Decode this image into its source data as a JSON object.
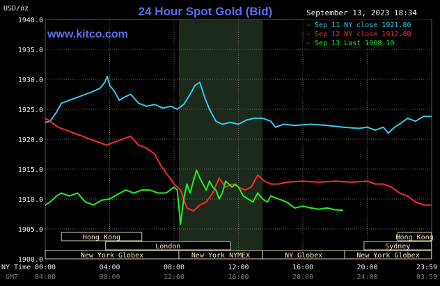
{
  "chart_data": {
    "type": "line",
    "title": "24 Hour Spot Gold (Bid)",
    "site": "www.kitco.com",
    "timestamp": "September 13, 2023 18:34",
    "ylabel": "USD/oz",
    "ylim": [
      1900,
      1940
    ],
    "yticks": [
      "1940.0",
      "1935.0",
      "1930.0",
      "1925.0",
      "1920.0",
      "1915.0",
      "1910.0",
      "1905.0",
      "1900.0"
    ],
    "ny_time_label": "NY Time",
    "gmt_label": "GMT",
    "xticks_ny": [
      "00:00",
      "04:00",
      "08:00",
      "12:00",
      "16:00",
      "20:00",
      "23:59"
    ],
    "xticks_gmt": [
      "04:00",
      "08:00",
      "12:00",
      "16:00",
      "20:00",
      "24:00",
      "03:59"
    ],
    "legend": [
      {
        "label": "Sep 11 NY close 1921.80",
        "color": "#33ccee"
      },
      {
        "label": "Sep 12 NY close 1912.80",
        "color": "#ff2a2a"
      },
      {
        "label": "Sep 13 Last 1908.10",
        "color": "#22ee22"
      }
    ],
    "sessions": [
      {
        "label": "Hong Kong",
        "row": 0,
        "start": 1.0,
        "end": 6.0
      },
      {
        "label": "Hong Kong",
        "row": 0,
        "start": 21.9,
        "end": 23.99
      },
      {
        "label": "London",
        "row": 1,
        "start": 3.75,
        "end": 11.5
      },
      {
        "label": "Sydney",
        "row": 1,
        "start": 19.8,
        "end": 23.99
      },
      {
        "label": "New York Globex",
        "row": 2,
        "start": 0.0,
        "end": 8.3
      },
      {
        "label": "New York NYMEX",
        "row": 2,
        "start": 8.3,
        "end": 13.5
      },
      {
        "label": "NY Globex",
        "row": 2,
        "start": 13.5,
        "end": 18.6
      },
      {
        "label": "New York Globex",
        "row": 2,
        "start": 18.6,
        "end": 23.99
      }
    ],
    "series": [
      {
        "name": "Sep 11",
        "color": "#33ccee",
        "x": [
          0,
          0.3,
          0.7,
          1.0,
          1.5,
          2.0,
          2.5,
          3.0,
          3.4,
          3.7,
          3.85,
          4.0,
          4.3,
          4.6,
          4.9,
          5.3,
          5.8,
          6.3,
          6.8,
          7.3,
          7.8,
          8.2,
          8.6,
          9.0,
          9.3,
          9.6,
          9.9,
          10.2,
          10.6,
          11.0,
          11.5,
          12.0,
          12.5,
          13.0,
          13.5,
          14.0,
          14.3,
          14.8,
          15.5,
          16.5,
          17.5,
          18.5,
          19.5,
          20.0,
          20.5,
          21.0,
          21.3,
          21.7,
          22.0,
          22.5,
          23.0,
          23.5,
          23.99
        ],
        "y": [
          1922.8,
          1923.0,
          1924.5,
          1926.0,
          1926.5,
          1927.0,
          1927.5,
          1928.0,
          1928.5,
          1929.5,
          1930.5,
          1929.0,
          1928.0,
          1926.5,
          1927.0,
          1927.5,
          1926.0,
          1925.5,
          1925.8,
          1925.2,
          1925.5,
          1925.0,
          1925.8,
          1927.5,
          1929.0,
          1929.5,
          1927.0,
          1925.0,
          1923.0,
          1922.5,
          1922.8,
          1922.5,
          1923.2,
          1923.5,
          1923.5,
          1923.0,
          1922.0,
          1922.5,
          1922.3,
          1922.5,
          1922.3,
          1922.0,
          1921.8,
          1922.0,
          1921.5,
          1922.0,
          1921.0,
          1922.0,
          1922.5,
          1923.5,
          1923.0,
          1923.8,
          1923.8
        ]
      },
      {
        "name": "Sep 12",
        "color": "#ff2a2a",
        "x": [
          0,
          0.3,
          0.8,
          1.3,
          1.8,
          2.3,
          2.8,
          3.3,
          3.8,
          4.3,
          4.8,
          5.3,
          5.8,
          6.3,
          6.8,
          7.2,
          7.6,
          8.0,
          8.4,
          8.8,
          9.2,
          9.6,
          10.0,
          10.4,
          10.8,
          11.2,
          11.6,
          12.0,
          12.4,
          12.8,
          13.2,
          13.6,
          14.0,
          14.5,
          15.0,
          16.0,
          17.0,
          18.0,
          19.0,
          20.0,
          20.5,
          21.0,
          21.5,
          22.0,
          22.5,
          23.0,
          23.5,
          23.99
        ],
        "y": [
          1923.5,
          1923.0,
          1922.0,
          1921.5,
          1921.0,
          1920.5,
          1920.0,
          1919.5,
          1919.0,
          1919.5,
          1920.0,
          1920.5,
          1919.0,
          1918.5,
          1917.5,
          1915.5,
          1914.0,
          1912.5,
          1911.5,
          1908.5,
          1908.0,
          1909.0,
          1909.5,
          1911.0,
          1913.5,
          1912.0,
          1912.5,
          1912.0,
          1911.5,
          1912.0,
          1914.0,
          1913.0,
          1912.5,
          1912.5,
          1912.8,
          1913.0,
          1912.8,
          1913.0,
          1912.8,
          1913.0,
          1912.5,
          1912.5,
          1912.0,
          1911.0,
          1910.5,
          1909.5,
          1909.0,
          1909.0
        ]
      },
      {
        "name": "Sep 13",
        "color": "#22ee22",
        "x": [
          0,
          0.3,
          0.7,
          1.0,
          1.5,
          2.0,
          2.5,
          3.0,
          3.5,
          4.0,
          4.5,
          5.0,
          5.5,
          6.0,
          6.5,
          7.0,
          7.5,
          8.0,
          8.2,
          8.4,
          8.6,
          8.8,
          9.0,
          9.2,
          9.4,
          9.6,
          9.8,
          10.0,
          10.2,
          10.4,
          10.6,
          10.8,
          11.0,
          11.2,
          11.4,
          11.6,
          11.8,
          12.0,
          12.3,
          12.6,
          12.9,
          13.2,
          13.5,
          13.8,
          14.0,
          14.5,
          15.0,
          15.5,
          16.0,
          16.5,
          17.0,
          17.5,
          18.0,
          18.5
        ],
        "y": [
          1909.0,
          1909.5,
          1910.5,
          1911.0,
          1910.5,
          1911.0,
          1909.5,
          1909.0,
          1909.8,
          1910.0,
          1910.8,
          1911.5,
          1911.0,
          1911.5,
          1911.5,
          1911.0,
          1911.0,
          1912.0,
          1911.5,
          1905.8,
          1910.0,
          1912.5,
          1911.0,
          1913.0,
          1914.8,
          1913.5,
          1912.5,
          1911.5,
          1913.0,
          1912.0,
          1911.5,
          1910.0,
          1911.0,
          1913.0,
          1912.5,
          1912.0,
          1912.5,
          1912.0,
          1910.5,
          1910.0,
          1909.5,
          1911.0,
          1910.0,
          1909.5,
          1910.5,
          1910.0,
          1909.5,
          1908.5,
          1908.8,
          1908.5,
          1908.3,
          1908.5,
          1908.2,
          1908.1
        ]
      }
    ],
    "shaded_region": {
      "start": 8.3,
      "end": 13.5,
      "color": "#1c2a1c"
    },
    "grid": true
  }
}
